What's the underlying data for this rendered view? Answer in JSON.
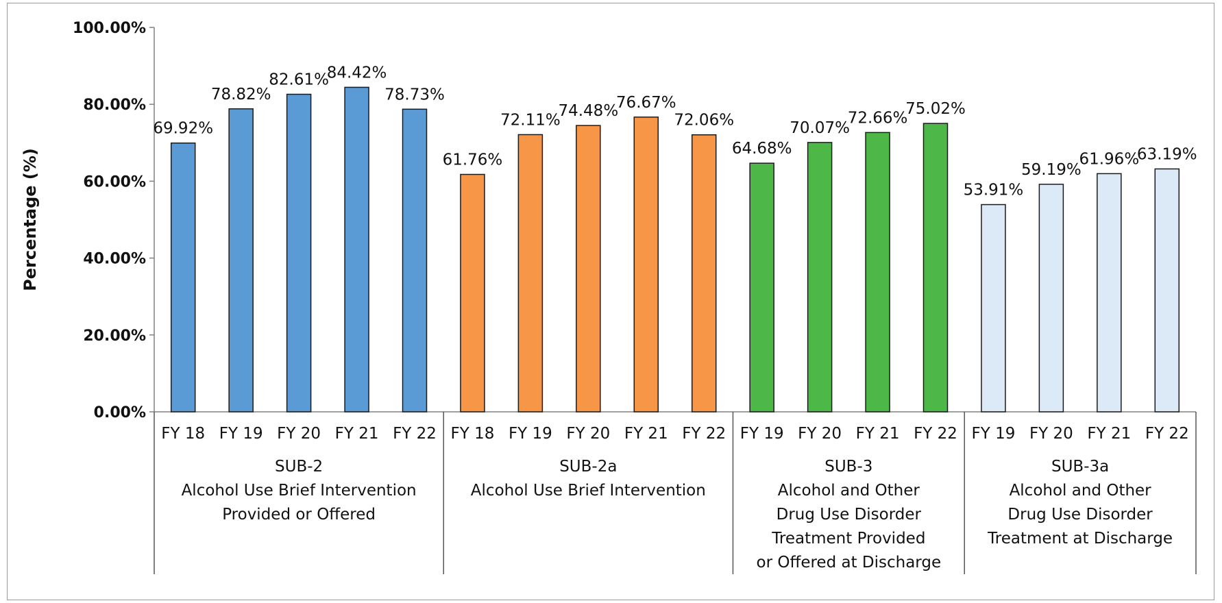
{
  "chart_data": {
    "type": "bar",
    "title": "",
    "ylabel": "Percentage (%)",
    "xlabel": "",
    "ylim": [
      0,
      100
    ],
    "y_ticks": [
      "0.00%",
      "20.00%",
      "40.00%",
      "60.00%",
      "80.00%",
      "100.00%"
    ],
    "grid": false,
    "groups": [
      {
        "label_lines": [
          "SUB-2",
          "Alcohol Use Brief Intervention",
          "Provided or Offered"
        ],
        "color": "#5b9bd5",
        "categories": [
          "FY 18",
          "FY 19",
          "FY 20",
          "FY 21",
          "FY 22"
        ],
        "values": [
          69.92,
          78.82,
          82.61,
          84.42,
          78.73
        ],
        "labels": [
          "69.92%",
          "78.82%",
          "82.61%",
          "84.42%",
          "78.73%"
        ]
      },
      {
        "label_lines": [
          "SUB-2a",
          "Alcohol Use Brief Intervention"
        ],
        "color": "#f79646",
        "categories": [
          "FY 18",
          "FY 19",
          "FY 20",
          "FY 21",
          "FY 22"
        ],
        "values": [
          61.76,
          72.11,
          74.48,
          76.67,
          72.06
        ],
        "labels": [
          "61.76%",
          "72.11%",
          "74.48%",
          "76.67%",
          "72.06%"
        ]
      },
      {
        "label_lines": [
          "SUB-3",
          "Alcohol and Other",
          "Drug Use Disorder",
          "Treatment Provided",
          "or Offered at Discharge"
        ],
        "color": "#4db848",
        "categories": [
          "FY 19",
          "FY 20",
          "FY 21",
          "FY 22"
        ],
        "values": [
          64.68,
          70.07,
          72.66,
          75.02
        ],
        "labels": [
          "64.68%",
          "70.07%",
          "72.66%",
          "75.02%"
        ]
      },
      {
        "label_lines": [
          "SUB-3a",
          "Alcohol and Other",
          "Drug Use Disorder",
          "Treatment at Discharge"
        ],
        "color": "#dce9f7",
        "categories": [
          "FY 19",
          "FY 20",
          "FY 21",
          "FY 22"
        ],
        "values": [
          53.91,
          59.19,
          61.96,
          63.19
        ],
        "labels": [
          "53.91%",
          "59.19%",
          "61.96%",
          "63.19%"
        ]
      }
    ]
  }
}
